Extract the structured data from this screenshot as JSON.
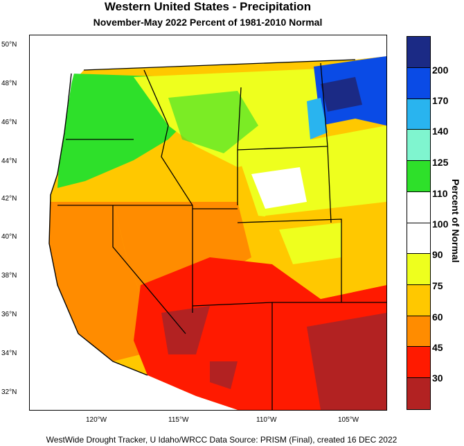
{
  "title": "Western United States - Precipitation",
  "subtitle": "November-May 2022  Percent of 1981-2010 Normal",
  "footer": "WestWide Drought Tracker, U Idaho/WRCC Data Source: PRISM (Final), created 16 DEC 2022",
  "legend": {
    "title": "Percent of Normal",
    "bins": [
      {
        "label": "200",
        "color": "#1b2a85"
      },
      {
        "label": "170",
        "color": "#0a4be6"
      },
      {
        "label": "140",
        "color": "#29b4ef"
      },
      {
        "label": "125",
        "color": "#7ff5cf"
      },
      {
        "label": "110",
        "color": "#2ee02a"
      },
      {
        "label": "100",
        "color": "#ffffff"
      },
      {
        "label": "90",
        "color": "#ffffff"
      },
      {
        "label": "75",
        "color": "#eeff1e"
      },
      {
        "label": "60",
        "color": "#ffc800"
      },
      {
        "label": "45",
        "color": "#ff8c00"
      },
      {
        "label": "30",
        "color": "#ff1a00"
      },
      {
        "label": "",
        "color": "#b22222"
      }
    ]
  },
  "axes": {
    "lat_labels": [
      "50°N",
      "48°N",
      "46°N",
      "44°N",
      "42°N",
      "40°N",
      "38°N",
      "36°N",
      "34°N",
      "32°N"
    ],
    "lon_labels": [
      "120°W",
      "115°W",
      "110°W",
      "105°W"
    ]
  }
}
